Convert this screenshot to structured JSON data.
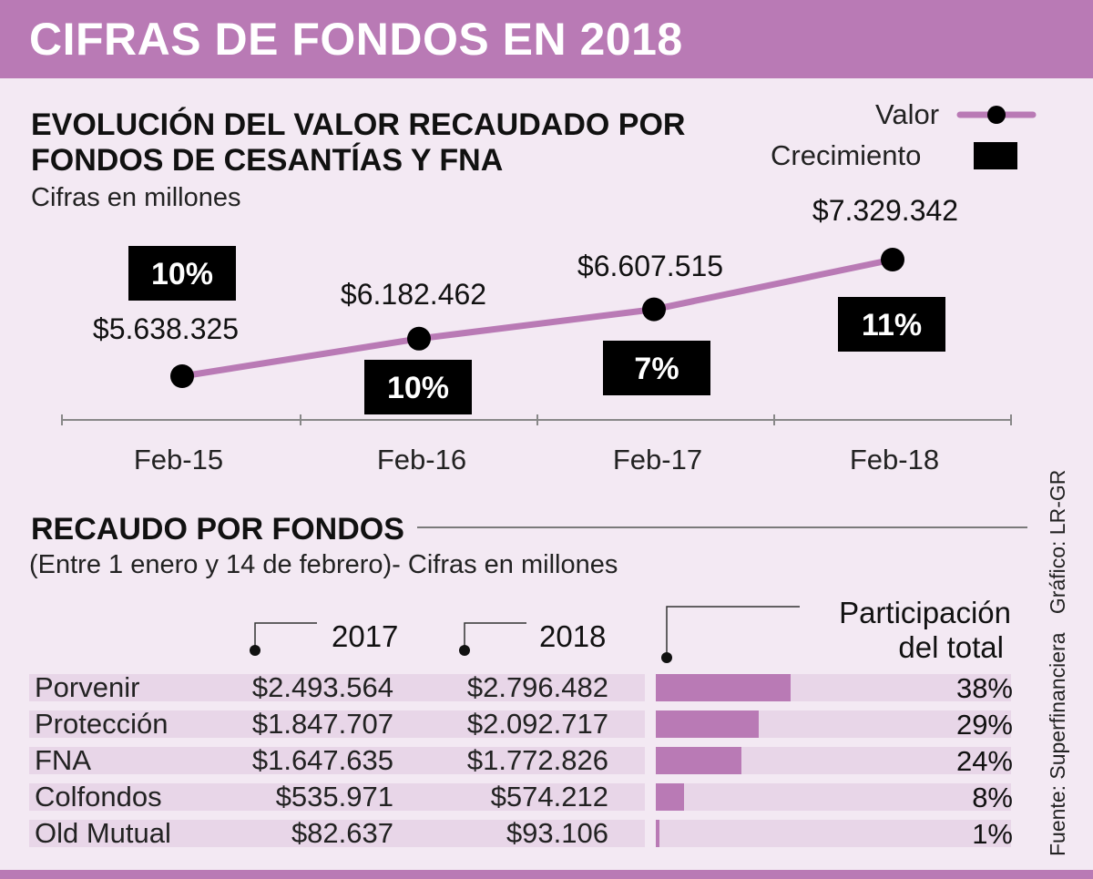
{
  "header": {
    "title": "CIFRAS DE FONDOS EN 2018"
  },
  "section1": {
    "title_line1": "EVOLUCIÓN DEL VALOR RECAUDADO POR",
    "title_line2": "FONDOS DE CESANTÍAS Y FNA",
    "subtitle": "Cifras en millones"
  },
  "legend": {
    "valor": "Valor",
    "crecimiento": "Crecimiento"
  },
  "colors": {
    "accent": "#b97ab5",
    "bar_bg": "#e8d6e8",
    "badge": "#000000",
    "background": "#f3e9f3"
  },
  "chart_data": {
    "type": "line",
    "categories": [
      "Feb-15",
      "Feb-16",
      "Feb-17",
      "Feb-18"
    ],
    "series": [
      {
        "name": "Valor",
        "values": [
          5638325,
          6182462,
          6607515,
          7329342
        ]
      }
    ],
    "value_labels": [
      "$5.638.325",
      "$6.182.462",
      "$6.607.515",
      "$7.329.342"
    ],
    "growth_labels": [
      "10%",
      "10%",
      "7%",
      "11%"
    ],
    "title": "EVOLUCIÓN DEL VALOR RECAUDADO POR FONDOS DE CESANTÍAS Y FNA",
    "ylabel": "Cifras en millones",
    "legend": [
      "Valor",
      "Crecimiento"
    ]
  },
  "section2": {
    "title": "RECAUDO POR FONDOS",
    "subtitle": "(Entre 1 enero y 14 de febrero)- Cifras en millones",
    "col_2017": "2017",
    "col_2018": "2018",
    "col_part_line1": "Participación",
    "col_part_line2": "del total",
    "rows": [
      {
        "name": "Porvenir",
        "v2017": "$2.493.564",
        "v2018": "$2.796.482",
        "pct": "38%",
        "share": 38
      },
      {
        "name": "Protección",
        "v2017": "$1.847.707",
        "v2018": "$2.092.717",
        "pct": "29%",
        "share": 29
      },
      {
        "name": "FNA",
        "v2017": "$1.647.635",
        "v2018": "$1.772.826",
        "pct": "24%",
        "share": 24
      },
      {
        "name": "Colfondos",
        "v2017": "$535.971",
        "v2018": "$574.212",
        "pct": "8%",
        "share": 8
      },
      {
        "name": "Old Mutual",
        "v2017": "$82.637",
        "v2018": "$93.106",
        "pct": "1%",
        "share": 1
      }
    ]
  },
  "credits": {
    "source": "Fuente: Superfinanciera",
    "graphic": "Gráfico: LR-GR"
  }
}
